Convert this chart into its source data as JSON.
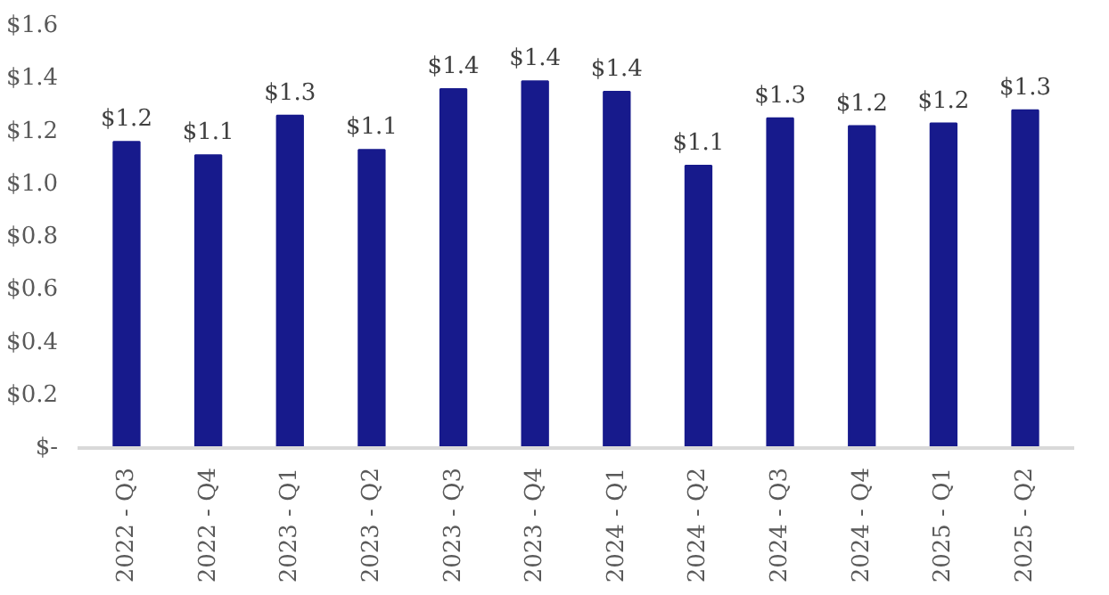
{
  "chart_data": {
    "type": "bar",
    "categories": [
      "2022 - Q3",
      "2022 - Q4",
      "2023 - Q1",
      "2023 - Q2",
      "2023 - Q3",
      "2023 - Q4",
      "2024 - Q1",
      "2024 - Q2",
      "2024 - Q3",
      "2024 - Q4",
      "2025 - Q1",
      "2025 - Q2"
    ],
    "values": [
      1.16,
      1.11,
      1.26,
      1.13,
      1.36,
      1.39,
      1.35,
      1.07,
      1.25,
      1.22,
      1.23,
      1.28
    ],
    "value_labels": [
      "$1.2",
      "$1.1",
      "$1.3",
      "$1.1",
      "$1.4",
      "$1.4",
      "$1.4",
      "$1.1",
      "$1.3",
      "$1.2",
      "$1.2",
      "$1.3"
    ],
    "color": "#171a8c",
    "ylim": [
      0,
      1.6
    ],
    "yticks": [
      {
        "value": 0,
        "label": "$-"
      },
      {
        "value": 0.2,
        "label": "$0.2"
      },
      {
        "value": 0.4,
        "label": "$0.4"
      },
      {
        "value": 0.6,
        "label": "$0.6"
      },
      {
        "value": 0.8,
        "label": "$0.8"
      },
      {
        "value": 1.0,
        "label": "$1.0"
      },
      {
        "value": 1.2,
        "label": "$1.2"
      },
      {
        "value": 1.4,
        "label": "$1.4"
      },
      {
        "value": 1.6,
        "label": "$1.6"
      }
    ],
    "grid": false
  }
}
